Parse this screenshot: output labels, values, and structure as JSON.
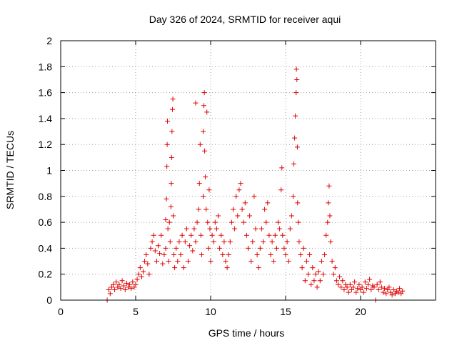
{
  "chart_data": {
    "type": "scatter",
    "title": "Day 326 of 2024, SRMTID for receiver aqui",
    "xlabel": "GPS time / hours",
    "ylabel": "SRMTID / TECUs",
    "xlim": [
      0,
      25
    ],
    "ylim": [
      0,
      2
    ],
    "xticks": [
      0,
      5,
      10,
      15,
      20
    ],
    "yticks": [
      0,
      0.2,
      0.4,
      0.6,
      0.8,
      1,
      1.2,
      1.4,
      1.6,
      1.8,
      2
    ],
    "xtick_labels": [
      "0",
      "5",
      "10",
      "15",
      "20"
    ],
    "ytick_labels": [
      "0",
      "0.2",
      "0.4",
      "0.6",
      "0.8",
      "1",
      "1.2",
      "1.4",
      "1.6",
      "1.8",
      "2"
    ],
    "grid": true,
    "marker": "+",
    "color": "#e00000",
    "series": [
      {
        "name": "SRMTID",
        "points": [
          [
            3.1,
            0.0
          ],
          [
            3.2,
            0.08
          ],
          [
            3.3,
            0.05
          ],
          [
            3.4,
            0.1
          ],
          [
            3.5,
            0.12
          ],
          [
            3.6,
            0.08
          ],
          [
            3.7,
            0.14
          ],
          [
            3.8,
            0.1
          ],
          [
            3.9,
            0.12
          ],
          [
            4.0,
            0.09
          ],
          [
            4.1,
            0.15
          ],
          [
            4.2,
            0.11
          ],
          [
            4.3,
            0.08
          ],
          [
            4.4,
            0.13
          ],
          [
            4.5,
            0.1
          ],
          [
            4.6,
            0.12
          ],
          [
            4.7,
            0.09
          ],
          [
            4.8,
            0.14
          ],
          [
            4.9,
            0.1
          ],
          [
            5.0,
            0.12
          ],
          [
            5.1,
            0.16
          ],
          [
            5.2,
            0.2
          ],
          [
            5.3,
            0.25
          ],
          [
            5.4,
            0.18
          ],
          [
            5.5,
            0.22
          ],
          [
            5.6,
            0.3
          ],
          [
            5.7,
            0.35
          ],
          [
            5.8,
            0.28
          ],
          [
            5.9,
            0.2
          ],
          [
            6.0,
            0.4
          ],
          [
            6.1,
            0.45
          ],
          [
            6.2,
            0.5
          ],
          [
            6.3,
            0.38
          ],
          [
            6.4,
            0.3
          ],
          [
            6.5,
            0.42
          ],
          [
            6.6,
            0.36
          ],
          [
            6.7,
            0.5
          ],
          [
            6.8,
            0.28
          ],
          [
            6.9,
            0.35
          ],
          [
            7.0,
            0.4
          ],
          [
            7.0,
            0.62
          ],
          [
            7.05,
            0.78
          ],
          [
            7.08,
            1.03
          ],
          [
            7.1,
            1.2
          ],
          [
            7.12,
            1.38
          ],
          [
            7.15,
            0.55
          ],
          [
            7.2,
            0.3
          ],
          [
            7.25,
            0.6
          ],
          [
            7.3,
            0.45
          ],
          [
            7.35,
            0.72
          ],
          [
            7.38,
            0.9
          ],
          [
            7.4,
            1.1
          ],
          [
            7.42,
            1.3
          ],
          [
            7.45,
            1.47
          ],
          [
            7.48,
            1.55
          ],
          [
            7.5,
            0.65
          ],
          [
            7.55,
            0.35
          ],
          [
            7.6,
            0.25
          ],
          [
            7.7,
            0.4
          ],
          [
            7.8,
            0.3
          ],
          [
            7.9,
            0.45
          ],
          [
            8.0,
            0.35
          ],
          [
            8.1,
            0.5
          ],
          [
            8.2,
            0.25
          ],
          [
            8.3,
            0.45
          ],
          [
            8.4,
            0.55
          ],
          [
            8.5,
            0.3
          ],
          [
            8.6,
            0.42
          ],
          [
            8.7,
            0.5
          ],
          [
            8.8,
            0.38
          ],
          [
            8.9,
            0.55
          ],
          [
            9.0,
            0.45
          ],
          [
            9.0,
            1.52
          ],
          [
            9.1,
            0.6
          ],
          [
            9.2,
            0.7
          ],
          [
            9.25,
            0.9
          ],
          [
            9.3,
            1.2
          ],
          [
            9.35,
            0.5
          ],
          [
            9.4,
            0.35
          ],
          [
            9.5,
            0.8
          ],
          [
            9.5,
            1.3
          ],
          [
            9.55,
            1.5
          ],
          [
            9.58,
            1.6
          ],
          [
            9.6,
            1.15
          ],
          [
            9.65,
            0.95
          ],
          [
            9.7,
            0.7
          ],
          [
            9.75,
            1.45
          ],
          [
            9.8,
            0.6
          ],
          [
            9.85,
            0.4
          ],
          [
            9.9,
            0.85
          ],
          [
            9.95,
            0.55
          ],
          [
            10.0,
            0.3
          ],
          [
            10.1,
            0.5
          ],
          [
            10.2,
            0.45
          ],
          [
            10.3,
            0.6
          ],
          [
            10.4,
            0.55
          ],
          [
            10.5,
            0.65
          ],
          [
            10.6,
            0.4
          ],
          [
            10.7,
            0.5
          ],
          [
            10.8,
            0.35
          ],
          [
            10.9,
            0.45
          ],
          [
            11.0,
            0.3
          ],
          [
            11.1,
            0.25
          ],
          [
            11.2,
            0.35
          ],
          [
            11.3,
            0.45
          ],
          [
            11.4,
            0.6
          ],
          [
            11.5,
            0.7
          ],
          [
            11.6,
            0.55
          ],
          [
            11.7,
            0.8
          ],
          [
            11.8,
            0.65
          ],
          [
            11.9,
            0.85
          ],
          [
            12.0,
            0.9
          ],
          [
            12.1,
            0.7
          ],
          [
            12.2,
            0.6
          ],
          [
            12.3,
            0.75
          ],
          [
            12.4,
            0.5
          ],
          [
            12.5,
            0.4
          ],
          [
            12.6,
            0.65
          ],
          [
            12.7,
            0.3
          ],
          [
            12.8,
            0.45
          ],
          [
            12.9,
            0.8
          ],
          [
            13.0,
            0.55
          ],
          [
            13.1,
            0.35
          ],
          [
            13.2,
            0.25
          ],
          [
            13.3,
            0.4
          ],
          [
            13.4,
            0.55
          ],
          [
            13.5,
            0.45
          ],
          [
            13.6,
            0.7
          ],
          [
            13.7,
            0.6
          ],
          [
            13.8,
            0.75
          ],
          [
            13.9,
            0.5
          ],
          [
            14.0,
            0.35
          ],
          [
            14.1,
            0.45
          ],
          [
            14.2,
            0.3
          ],
          [
            14.3,
            0.5
          ],
          [
            14.4,
            0.4
          ],
          [
            14.5,
            0.6
          ],
          [
            14.6,
            0.55
          ],
          [
            14.7,
            0.85
          ],
          [
            14.75,
            1.02
          ],
          [
            14.8,
            0.5
          ],
          [
            14.9,
            0.4
          ],
          [
            15.0,
            0.35
          ],
          [
            15.1,
            0.45
          ],
          [
            15.2,
            0.3
          ],
          [
            15.3,
            0.55
          ],
          [
            15.4,
            0.65
          ],
          [
            15.5,
            0.8
          ],
          [
            15.55,
            1.05
          ],
          [
            15.6,
            1.25
          ],
          [
            15.65,
            1.42
          ],
          [
            15.7,
            1.6
          ],
          [
            15.72,
            1.78
          ],
          [
            15.75,
            1.7
          ],
          [
            15.78,
            1.18
          ],
          [
            15.8,
            0.75
          ],
          [
            15.85,
            0.6
          ],
          [
            15.9,
            0.45
          ],
          [
            16.0,
            0.35
          ],
          [
            16.1,
            0.25
          ],
          [
            16.2,
            0.4
          ],
          [
            16.3,
            0.15
          ],
          [
            16.4,
            0.3
          ],
          [
            16.5,
            0.2
          ],
          [
            16.6,
            0.35
          ],
          [
            16.7,
            0.12
          ],
          [
            16.8,
            0.25
          ],
          [
            16.9,
            0.15
          ],
          [
            17.0,
            0.2
          ],
          [
            17.1,
            0.1
          ],
          [
            17.2,
            0.22
          ],
          [
            17.3,
            0.15
          ],
          [
            17.4,
            0.3
          ],
          [
            17.5,
            0.2
          ],
          [
            17.6,
            0.35
          ],
          [
            17.7,
            0.5
          ],
          [
            17.8,
            0.6
          ],
          [
            17.85,
            0.75
          ],
          [
            17.9,
            0.88
          ],
          [
            17.95,
            0.65
          ],
          [
            18.0,
            0.45
          ],
          [
            18.1,
            0.3
          ],
          [
            18.2,
            0.2
          ],
          [
            18.3,
            0.25
          ],
          [
            18.4,
            0.15
          ],
          [
            18.5,
            0.12
          ],
          [
            18.6,
            0.18
          ],
          [
            18.7,
            0.1
          ],
          [
            18.8,
            0.15
          ],
          [
            18.9,
            0.08
          ],
          [
            19.0,
            0.12
          ],
          [
            19.1,
            0.1
          ],
          [
            19.2,
            0.06
          ],
          [
            19.3,
            0.12
          ],
          [
            19.4,
            0.08
          ],
          [
            19.5,
            0.1
          ],
          [
            19.6,
            0.14
          ],
          [
            19.7,
            0.06
          ],
          [
            19.8,
            0.09
          ],
          [
            19.9,
            0.12
          ],
          [
            20.0,
            0.08
          ],
          [
            20.1,
            0.1
          ],
          [
            20.2,
            0.06
          ],
          [
            20.3,
            0.14
          ],
          [
            20.4,
            0.09
          ],
          [
            20.5,
            0.12
          ],
          [
            20.6,
            0.16
          ],
          [
            20.7,
            0.08
          ],
          [
            20.8,
            0.11
          ],
          [
            20.9,
            0.1
          ],
          [
            21.0,
            0.0
          ],
          [
            21.1,
            0.12
          ],
          [
            21.2,
            0.08
          ],
          [
            21.3,
            0.14
          ],
          [
            21.4,
            0.1
          ],
          [
            21.5,
            0.06
          ],
          [
            21.6,
            0.09
          ],
          [
            21.7,
            0.05
          ],
          [
            21.8,
            0.08
          ],
          [
            21.9,
            0.1
          ],
          [
            22.0,
            0.06
          ],
          [
            22.1,
            0.04
          ],
          [
            22.2,
            0.08
          ],
          [
            22.3,
            0.05
          ],
          [
            22.4,
            0.07
          ],
          [
            22.5,
            0.06
          ],
          [
            22.6,
            0.09
          ],
          [
            22.7,
            0.05
          ],
          [
            22.8,
            0.07
          ]
        ]
      }
    ]
  }
}
